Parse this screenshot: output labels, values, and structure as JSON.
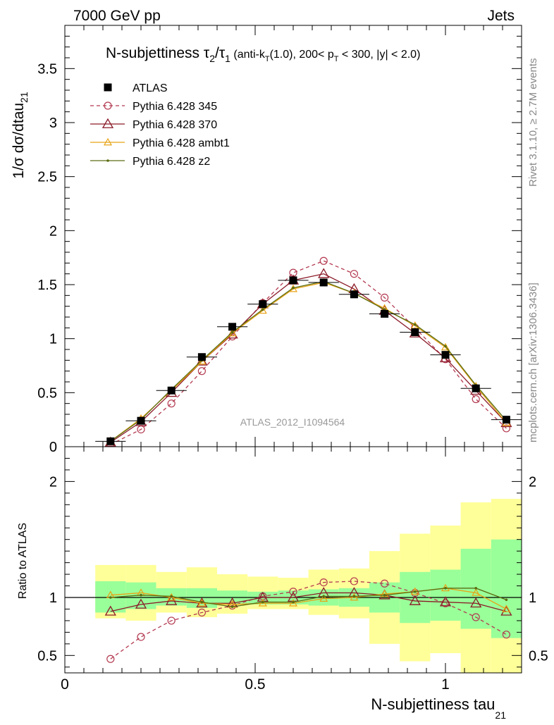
{
  "header": {
    "left_label": "7000 GeV pp",
    "right_label": "Jets"
  },
  "side_labels": {
    "rivet": "Rivet 3.1.10, ≥ 2.7M events",
    "mcplots": "mcplots.cern.ch [arXiv:1306.3436]"
  },
  "chart_data": {
    "type": "line",
    "title": {
      "prefix": "N-subjettiness τ",
      "sub2": "2",
      "slash": "/τ",
      "sub1": "1",
      "cut_a": " (anti-k",
      "cut_T1": "T",
      "cut_b": "(1.0), 200< p",
      "cut_T2": "T",
      "cut_c": " < 300, |y| < 2.0)"
    },
    "ylabel_main": {
      "text": "1/σ dσ/dtau",
      "sub": "21"
    },
    "ylabel_ratio": "Ratio to ATLAS",
    "xlabel": {
      "text": "N-subjettiness tau",
      "sub": "21"
    },
    "analysis_tag": "ATLAS_2012_I1094564",
    "xlim": [
      0,
      1.2
    ],
    "ylim_main": [
      0,
      3.9
    ],
    "ylim_ratio": [
      0.35,
      2.3
    ],
    "x_ticks": [
      {
        "v": 0,
        "label": "0"
      },
      {
        "v": 0.5,
        "label": "0.5"
      },
      {
        "v": 1,
        "label": "1"
      }
    ],
    "y_ticks_main": [
      {
        "v": 0,
        "label": "0"
      },
      {
        "v": 0.5,
        "label": "0.5"
      },
      {
        "v": 1,
        "label": "1"
      },
      {
        "v": 1.5,
        "label": "1.5"
      },
      {
        "v": 2,
        "label": "2"
      },
      {
        "v": 2.5,
        "label": "2.5"
      },
      {
        "v": 3,
        "label": "3"
      },
      {
        "v": 3.5,
        "label": "3.5"
      }
    ],
    "y_ticks_ratio": [
      {
        "v": 0.5,
        "label": "0.5"
      },
      {
        "v": 1,
        "label": "1"
      },
      {
        "v": 2,
        "label": "2"
      }
    ],
    "bins": [
      [
        0.08,
        0.16
      ],
      [
        0.16,
        0.24
      ],
      [
        0.24,
        0.32
      ],
      [
        0.32,
        0.4
      ],
      [
        0.4,
        0.48
      ],
      [
        0.48,
        0.56
      ],
      [
        0.56,
        0.64
      ],
      [
        0.64,
        0.72
      ],
      [
        0.72,
        0.8
      ],
      [
        0.8,
        0.88
      ],
      [
        0.88,
        0.96
      ],
      [
        0.96,
        1.04
      ],
      [
        1.04,
        1.12
      ],
      [
        1.12,
        1.2
      ]
    ],
    "x": [
      0.12,
      0.2,
      0.28,
      0.36,
      0.44,
      0.52,
      0.6,
      0.68,
      0.76,
      0.84,
      0.92,
      1.0,
      1.08,
      1.16
    ],
    "data": {
      "name": "ATLAS",
      "values": [
        0.05,
        0.24,
        0.52,
        0.83,
        1.11,
        1.32,
        1.54,
        1.52,
        1.41,
        1.23,
        1.06,
        0.85,
        0.54,
        0.25
      ],
      "band_green": [
        [
          0.87,
          1.14
        ],
        [
          0.9,
          1.13
        ],
        [
          0.93,
          1.08
        ],
        [
          0.91,
          1.08
        ],
        [
          0.94,
          1.06
        ],
        [
          0.94,
          1.05
        ],
        [
          0.94,
          1.06
        ],
        [
          0.93,
          1.07
        ],
        [
          0.92,
          1.08
        ],
        [
          0.87,
          1.13
        ],
        [
          0.78,
          1.22
        ],
        [
          0.8,
          1.24
        ],
        [
          0.73,
          1.42
        ],
        [
          0.65,
          1.5
        ]
      ],
      "band_yellow": [
        [
          0.82,
          1.28
        ],
        [
          0.8,
          1.28
        ],
        [
          0.87,
          1.22
        ],
        [
          0.83,
          1.26
        ],
        [
          0.86,
          1.2
        ],
        [
          0.9,
          1.18
        ],
        [
          0.9,
          1.17
        ],
        [
          0.85,
          1.24
        ],
        [
          0.82,
          1.25
        ],
        [
          0.6,
          1.4
        ],
        [
          0.45,
          1.55
        ],
        [
          0.52,
          1.62
        ],
        [
          0.35,
          1.82
        ],
        [
          0.35,
          1.85
        ]
      ],
      "color": "#000000"
    },
    "series": [
      {
        "name": "Pythia 6.428 345",
        "color": "#b33950",
        "marker": "circle",
        "dashed": true,
        "values": [
          0.02,
          0.16,
          0.4,
          0.7,
          1.02,
          1.33,
          1.61,
          1.72,
          1.6,
          1.38,
          1.1,
          0.81,
          0.44,
          0.17
        ],
        "ratio": [
          0.47,
          0.66,
          0.8,
          0.87,
          0.93,
          1.01,
          1.05,
          1.13,
          1.14,
          1.12,
          1.04,
          0.95,
          0.83,
          0.68
        ]
      },
      {
        "name": "Pythia 6.428 370",
        "color": "#8b1a28",
        "marker": "triangle",
        "dashed": false,
        "values": [
          0.04,
          0.23,
          0.5,
          0.79,
          1.04,
          1.32,
          1.54,
          1.6,
          1.46,
          1.26,
          1.05,
          0.82,
          0.52,
          0.22
        ],
        "ratio": [
          0.88,
          0.94,
          0.97,
          0.95,
          0.95,
          1.0,
          1.0,
          1.04,
          1.04,
          1.02,
          0.97,
          0.96,
          0.95,
          0.88
        ]
      },
      {
        "name": "Pythia 6.428 ambt1",
        "color": "#e8a317",
        "marker": "triangle-small",
        "dashed": false,
        "values": [
          0.05,
          0.26,
          0.52,
          0.79,
          1.05,
          1.26,
          1.46,
          1.52,
          1.42,
          1.28,
          1.12,
          0.92,
          0.56,
          0.22
        ],
        "ratio": [
          1.02,
          1.04,
          1.0,
          0.95,
          0.94,
          0.95,
          0.95,
          0.99,
          1.0,
          1.03,
          1.05,
          1.08,
          1.04,
          0.9
        ]
      },
      {
        "name": "Pythia 6.428 z2",
        "color": "#5b6d13",
        "marker": "dot",
        "dashed": false,
        "values": [
          0.05,
          0.25,
          0.53,
          0.8,
          1.06,
          1.27,
          1.47,
          1.53,
          1.42,
          1.27,
          1.13,
          0.93,
          0.57,
          0.24
        ],
        "ratio": [
          1.0,
          1.02,
          1.01,
          0.96,
          0.92,
          0.96,
          0.96,
          1.01,
          1.01,
          1.02,
          1.05,
          1.08,
          1.08,
          0.98
        ]
      }
    ],
    "legend_position": "top-left",
    "grid": false
  }
}
